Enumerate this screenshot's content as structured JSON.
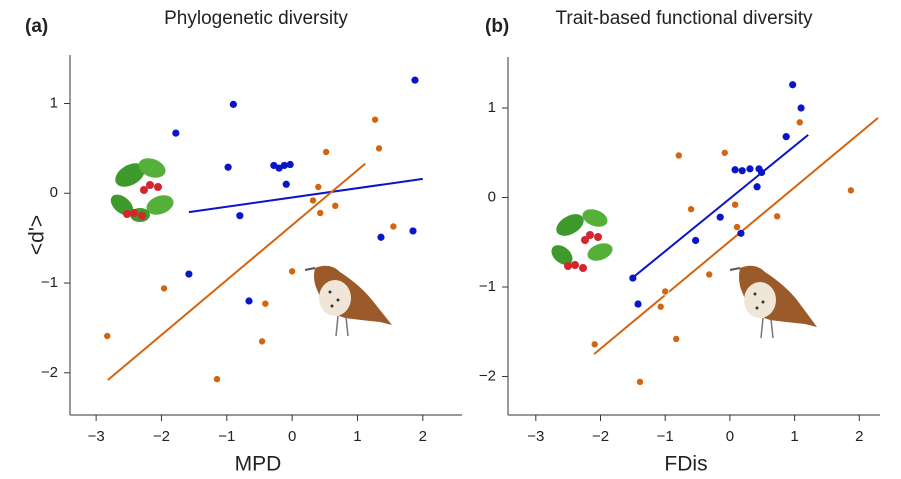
{
  "chart_data": [
    {
      "type": "scatter",
      "panel_label": "(a)",
      "title": "Phylogenetic diversity",
      "x_label": "MPD",
      "y_label": "<d'>",
      "xlim": [
        -3.4,
        2.6
      ],
      "ylim": [
        -2.47,
        1.54
      ],
      "xticks": [
        {
          "value": -3,
          "label": "−3"
        },
        {
          "value": -2,
          "label": "−2"
        },
        {
          "value": -1,
          "label": "−1"
        },
        0,
        1,
        2
      ],
      "yticks": [
        {
          "value": -2,
          "label": "−2"
        },
        {
          "value": -1,
          "label": "−1"
        },
        0,
        1
      ],
      "series": [
        {
          "color": "#0a14c8",
          "x": [
            1.88,
            -0.9,
            -1.78,
            -0.98,
            -0.28,
            -0.2,
            -0.12,
            -0.03,
            -0.09,
            -0.8,
            -1.58,
            -0.66,
            1.36,
            1.85
          ],
          "values": [
            1.26,
            0.99,
            0.67,
            0.29,
            0.31,
            0.28,
            0.31,
            0.32,
            0.1,
            -0.25,
            -0.9,
            -1.2,
            -0.49,
            -0.42
          ]
        },
        {
          "color": "#d5640f",
          "x": [
            -2.83,
            -1.96,
            -1.15,
            -0.41,
            -0.46,
            0,
            0.32,
            0.4,
            0.43,
            0.52,
            0.66,
            1.27,
            1.33,
            1.55
          ],
          "values": [
            -1.59,
            -1.06,
            -2.07,
            -1.23,
            -1.65,
            -0.87,
            -0.08,
            0.07,
            -0.22,
            0.46,
            -0.14,
            0.82,
            0.5,
            -0.37
          ]
        }
      ],
      "fits": [
        {
          "color": "#0a14c8",
          "x": [
            -1.58,
            2
          ],
          "values": [
            -0.21,
            0.16
          ]
        },
        {
          "color": "#d5640f",
          "x": [
            -2.82,
            1.12
          ],
          "values": [
            -2.08,
            0.33
          ]
        }
      ]
    },
    {
      "type": "scatter",
      "panel_label": "(b)",
      "title": "Trait-based functional diversity",
      "x_label": "FDis",
      "xlim": [
        -3.43,
        2.32
      ],
      "ylim": [
        -2.43,
        1.57
      ],
      "xticks": [
        {
          "value": -3,
          "label": "−3"
        },
        {
          "value": -2,
          "label": "−2"
        },
        {
          "value": -1,
          "label": "−1"
        },
        0,
        1,
        2
      ],
      "yticks": [
        {
          "value": -2,
          "label": "−2"
        },
        {
          "value": -1,
          "label": "−1"
        },
        0,
        1
      ],
      "series": [
        {
          "color": "#0a14c8",
          "x": [
            0.97,
            1.1,
            0.87,
            0.08,
            0.19,
            0.31,
            0.45,
            0.49,
            0.42,
            -0.15,
            0.17,
            -0.53,
            -1.5,
            -1.42
          ],
          "values": [
            1.26,
            1.0,
            0.68,
            0.31,
            0.3,
            0.32,
            0.32,
            0.28,
            0.12,
            -0.22,
            -0.4,
            -0.48,
            -0.9,
            -1.19
          ]
        },
        {
          "color": "#d5640f",
          "x": [
            -2.09,
            -1.39,
            -1.0,
            -1.07,
            -0.83,
            -0.79,
            -0.6,
            -0.32,
            -0.08,
            0.08,
            0.11,
            0.73,
            1.08,
            1.87
          ],
          "values": [
            -1.64,
            -2.06,
            -1.05,
            -1.22,
            -1.58,
            0.47,
            -0.13,
            -0.86,
            0.5,
            -0.08,
            -0.33,
            -0.21,
            0.84,
            0.08
          ]
        }
      ],
      "fits": [
        {
          "color": "#0a14c8",
          "x": [
            -1.51,
            1.21
          ],
          "values": [
            -0.9,
            0.7
          ]
        },
        {
          "color": "#d5640f",
          "x": [
            -2.1,
            2.29
          ],
          "values": [
            -1.75,
            0.89
          ]
        }
      ]
    }
  ]
}
